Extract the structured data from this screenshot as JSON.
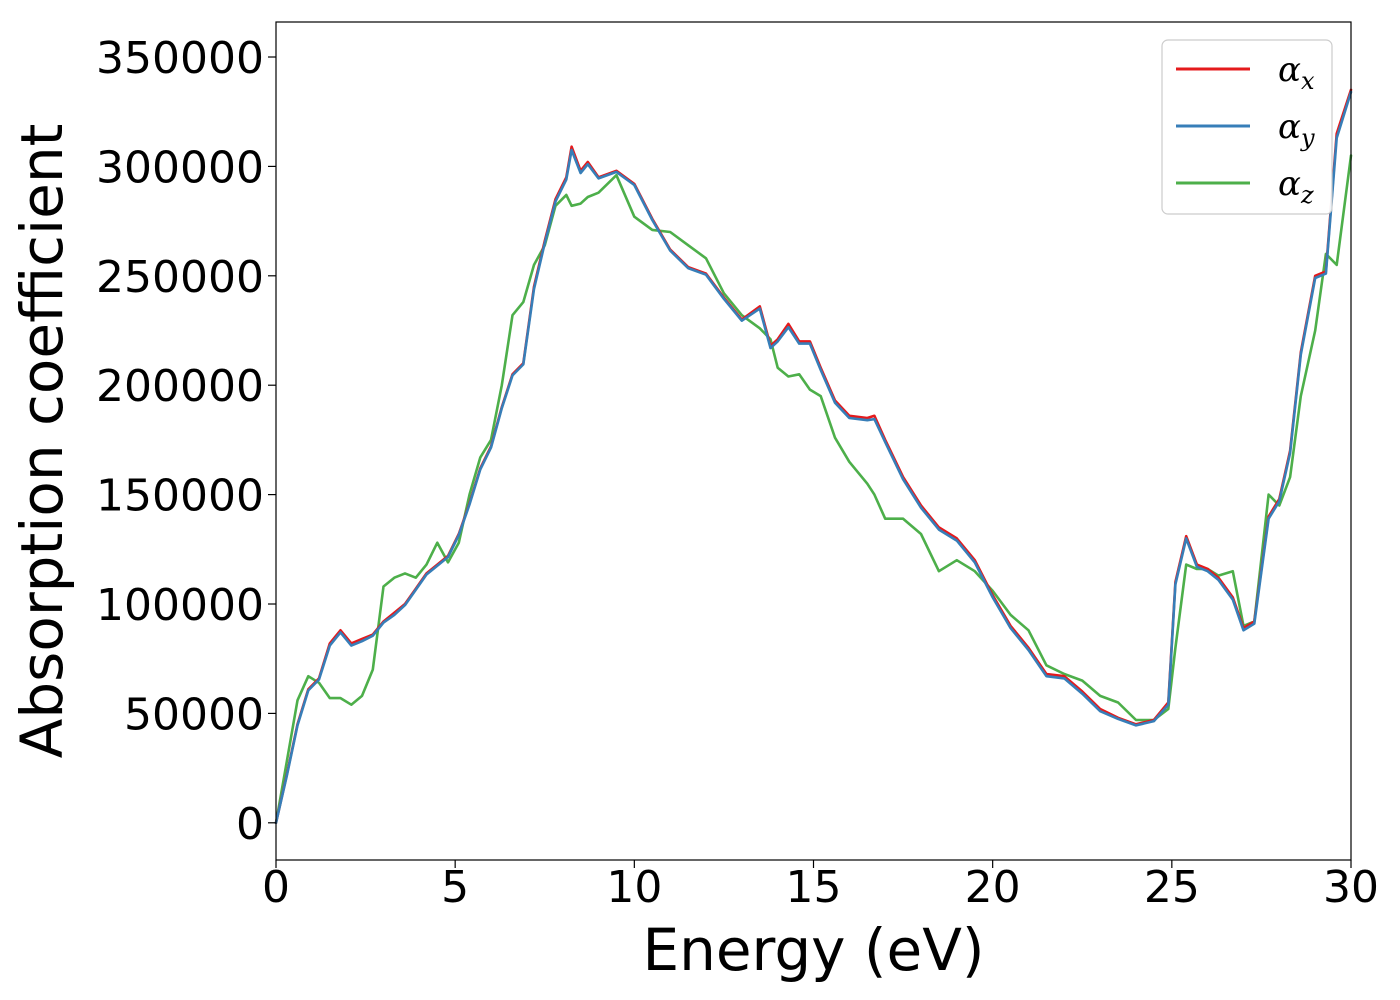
{
  "chart_data": {
    "type": "line",
    "title": "",
    "xlabel": "Energy (eV)",
    "ylabel": "Absorption coefficient",
    "xlim": [
      0,
      30
    ],
    "ylim": [
      -17000,
      366000
    ],
    "xticks": [
      0,
      5,
      10,
      15,
      20,
      25,
      30
    ],
    "xtick_labels": [
      "0",
      "5",
      "10",
      "15",
      "20",
      "25",
      "30"
    ],
    "yticks": [
      0,
      50000,
      100000,
      150000,
      200000,
      250000,
      300000,
      350000
    ],
    "ytick_labels": [
      "0",
      "50000",
      "100000",
      "150000",
      "200000",
      "250000",
      "300000",
      "350000"
    ],
    "grid": false,
    "legend_position": "top-right",
    "series": [
      {
        "name": "α",
        "subscript": "x",
        "color": "#e41a1c",
        "x": [
          0,
          0.3,
          0.6,
          0.9,
          1.2,
          1.5,
          1.8,
          2.1,
          2.4,
          2.7,
          3.0,
          3.3,
          3.6,
          3.9,
          4.2,
          4.5,
          4.8,
          5.1,
          5.4,
          5.7,
          6.0,
          6.3,
          6.6,
          6.9,
          7.2,
          7.5,
          7.8,
          8.1,
          8.25,
          8.5,
          8.7,
          9.0,
          9.5,
          10.0,
          10.5,
          11.0,
          11.5,
          12.0,
          12.5,
          13.0,
          13.5,
          13.8,
          14.0,
          14.3,
          14.6,
          14.9,
          15.2,
          15.6,
          16.0,
          16.5,
          16.7,
          17.0,
          17.5,
          18.0,
          18.5,
          19.0,
          19.5,
          20.0,
          20.5,
          21.0,
          21.5,
          22.0,
          22.5,
          23.0,
          23.5,
          24.0,
          24.5,
          24.9,
          25.1,
          25.4,
          25.7,
          26.0,
          26.3,
          26.7,
          27.0,
          27.3,
          27.7,
          28.0,
          28.3,
          28.6,
          29.0,
          29.3,
          29.6,
          30.0
        ],
        "y": [
          0,
          22000,
          45000,
          61000,
          66000,
          82000,
          88000,
          82000,
          84000,
          86000,
          92000,
          96000,
          100000,
          107000,
          114000,
          118000,
          122000,
          132000,
          146000,
          162000,
          172000,
          190000,
          205000,
          210000,
          245000,
          266000,
          285000,
          295000,
          309000,
          298000,
          302000,
          295000,
          298000,
          292000,
          276000,
          262000,
          254000,
          251000,
          240000,
          230000,
          236000,
          218000,
          221000,
          228000,
          220000,
          220000,
          208000,
          193000,
          186000,
          185000,
          186000,
          175000,
          158000,
          145000,
          135000,
          130000,
          120000,
          104000,
          90000,
          80000,
          68000,
          67000,
          60000,
          52000,
          48000,
          45000,
          47000,
          55000,
          110000,
          131000,
          118000,
          116000,
          112000,
          103000,
          89000,
          92000,
          140000,
          148000,
          170000,
          215000,
          250000,
          252000,
          315000,
          335000
        ]
      },
      {
        "name": "α",
        "subscript": "y",
        "color": "#377eb8",
        "x": [
          0,
          0.3,
          0.6,
          0.9,
          1.2,
          1.5,
          1.8,
          2.1,
          2.4,
          2.7,
          3.0,
          3.3,
          3.6,
          3.9,
          4.2,
          4.5,
          4.8,
          5.1,
          5.4,
          5.7,
          6.0,
          6.3,
          6.6,
          6.9,
          7.2,
          7.5,
          7.8,
          8.1,
          8.25,
          8.5,
          8.7,
          9.0,
          9.5,
          10.0,
          10.5,
          11.0,
          11.5,
          12.0,
          12.5,
          13.0,
          13.5,
          13.8,
          14.0,
          14.3,
          14.6,
          14.9,
          15.2,
          15.6,
          16.0,
          16.5,
          16.7,
          17.0,
          17.5,
          18.0,
          18.5,
          19.0,
          19.5,
          20.0,
          20.5,
          21.0,
          21.5,
          22.0,
          22.5,
          23.0,
          23.5,
          24.0,
          24.5,
          24.9,
          25.1,
          25.4,
          25.7,
          26.0,
          26.3,
          26.7,
          27.0,
          27.3,
          27.7,
          28.0,
          28.3,
          28.6,
          29.0,
          29.3,
          29.6,
          30.0
        ],
        "y": [
          0,
          21500,
          44500,
          60500,
          65500,
          81000,
          87000,
          81000,
          83000,
          85500,
          91500,
          95000,
          99500,
          106500,
          113500,
          117500,
          121500,
          131500,
          145500,
          161500,
          171500,
          189500,
          204500,
          209500,
          244000,
          265000,
          284000,
          294000,
          307500,
          297000,
          301000,
          294500,
          297500,
          291500,
          275500,
          261500,
          253500,
          250500,
          239500,
          229500,
          235000,
          217000,
          220000,
          226500,
          219000,
          219000,
          207000,
          192000,
          185000,
          184000,
          184500,
          174000,
          157000,
          144000,
          134000,
          129000,
          119000,
          103000,
          89000,
          79000,
          67000,
          66000,
          59000,
          51000,
          47500,
          44500,
          46500,
          54000,
          109000,
          130000,
          117000,
          115000,
          111000,
          102000,
          88000,
          91000,
          139000,
          147000,
          169000,
          214000,
          249000,
          251000,
          313000,
          334000
        ]
      },
      {
        "name": "α",
        "subscript": "z",
        "color": "#4daf4a",
        "x": [
          0,
          0.3,
          0.6,
          0.9,
          1.2,
          1.5,
          1.8,
          2.1,
          2.4,
          2.7,
          3.0,
          3.3,
          3.6,
          3.9,
          4.2,
          4.5,
          4.8,
          5.1,
          5.4,
          5.7,
          6.0,
          6.3,
          6.6,
          6.9,
          7.2,
          7.5,
          7.8,
          8.1,
          8.25,
          8.5,
          8.7,
          9.0,
          9.5,
          10.0,
          10.5,
          11.0,
          11.5,
          12.0,
          12.5,
          13.0,
          13.5,
          13.8,
          14.0,
          14.3,
          14.6,
          14.9,
          15.2,
          15.6,
          16.0,
          16.5,
          16.7,
          17.0,
          17.5,
          18.0,
          18.5,
          19.0,
          19.5,
          20.0,
          20.5,
          21.0,
          21.5,
          22.0,
          22.5,
          23.0,
          23.5,
          24.0,
          24.5,
          24.9,
          25.1,
          25.4,
          25.7,
          26.0,
          26.3,
          26.7,
          27.0,
          27.3,
          27.7,
          28.0,
          28.3,
          28.6,
          29.0,
          29.3,
          29.6,
          30.0
        ],
        "y": [
          0,
          28000,
          56000,
          67000,
          64000,
          57000,
          57000,
          54000,
          58000,
          70000,
          108000,
          112000,
          114000,
          112000,
          118000,
          128000,
          119000,
          128000,
          150000,
          167000,
          175000,
          200000,
          232000,
          238000,
          255000,
          264000,
          282000,
          287000,
          282000,
          283000,
          286000,
          288000,
          296000,
          277000,
          271000,
          270000,
          264000,
          258000,
          242000,
          232000,
          226000,
          221000,
          208000,
          204000,
          205000,
          198000,
          195000,
          176000,
          165000,
          155000,
          150000,
          139000,
          139000,
          132000,
          115000,
          120000,
          115000,
          106000,
          95000,
          88000,
          72000,
          68000,
          65000,
          58000,
          55000,
          47000,
          47000,
          52000,
          80000,
          118000,
          116000,
          116000,
          113000,
          115000,
          90000,
          92000,
          150000,
          145000,
          158000,
          195000,
          225000,
          260000,
          255000,
          305000
        ]
      }
    ]
  }
}
